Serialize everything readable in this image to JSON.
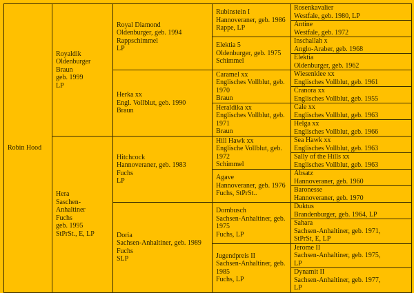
{
  "horse": "Robin Hood",
  "parents": [
    "Royaldik\nOldenburger\nBraun\ngeb. 1999\nLP",
    "Hera\nSaschen-Anhaltiner\nFuchs\ngeb. 1995\nStPrSt., E, LP"
  ],
  "grandparents": [
    "Royal Diamond\nOldenburger, geb. 1994\nRappschimmel\nLP",
    "Herka xx\nEngl. Vollblut, geb. 1990\nBraun",
    "Hitchcock\nHannoveraner, geb. 1983\nFuchs\nLP",
    "Doria\nSachsen-Anhaltiner, geb. 1989\nFuchs\nSLP"
  ],
  "great_grandparents": [
    "Rubinstein I\nHannoveraner, geb. 1986\nRappe, LP",
    "Elektia 5\nOldenburger, geb. 1975\nSchimmel",
    "Caramel xx\nEnglisches Vollblut, geb. 1970\nBraun",
    "Heraldika xx\nEnglisches Vollblut, geb. 1971\nBraun",
    "Hill Hawk xx\nEnglische Vollblut, geb. 1972\nSchimmel",
    "Agave\nHannoveraner, geb. 1976\nFuchs, StPrSt..",
    "Dornbusch\nSachsen-Anhaltiner, geb. 1975\nFuchs, LP",
    "Jugendpreis II\nSachsen-Anhaltiner, geb. 1985\nFuchs, LP"
  ],
  "great_great_grandparents": [
    "Rosenkavalier\nWestfale, geb. 1980, LP",
    "Antine\nWestfale, geb. 1972",
    "Inschallah x\nAnglo-Araber, geb. 1968",
    "Elektia\nOldenburger, geb. 1962",
    "Wiesenklee xx\nEnglisches Vollblut, geb. 1961",
    "Cranora xx\nEnglisches Vollblut, geb. 1955",
    "Cale xx\nEnglisches Vollblut, geb. 1963",
    "Helga xx\nEnglisches Vollblut, geb. 1966",
    "Sea Hawk xx\nEnglisches Vollblut, geb. 1963",
    "Sally of the Hills xx\nEnglisches Vollblut, geb. 1963",
    "Absatz\nHannoveraner, geb. 1960",
    "Baronesse\nHannoveraner, geb. 1970",
    "Duktus\nBrandenburger, geb. 1964, LP",
    "Sahara\nSachsen-Anhaltiner, geb. 1971,\nStPrSt, E, LP",
    "Jerome II\nSachsen-Anhaltiner, geb. 1975,\nLP",
    "Dynamit II\nSachsen-Anhaltiner, geb. 1977,\nLP"
  ],
  "colors": {
    "background": "#FFC000",
    "border": "#3b2c00"
  }
}
